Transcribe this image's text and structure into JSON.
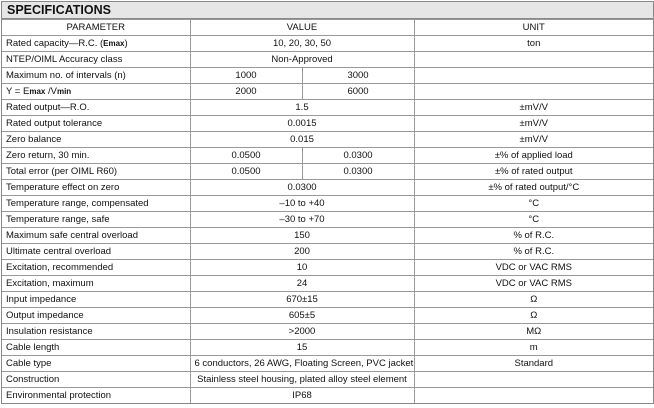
{
  "title": "SPECIFICATIONS",
  "headers": {
    "parameter": "PARAMETER",
    "value": "VALUE",
    "unit": "UNIT"
  },
  "rows": [
    {
      "parameter": "Rated capacity—R.C. (",
      "param_sub": "Emax",
      "param_end": ")",
      "value": "10, 20, 30, 50",
      "unit": "ton"
    },
    {
      "parameter": "NTEP/OIML Accuracy class",
      "value": "Non-Approved",
      "unit": ""
    },
    {
      "parameter": "Maximum no. of intervals (n)",
      "value1": "1000",
      "value2": "3000",
      "unit": ""
    },
    {
      "parameter": "Y = E",
      "param_sub": "max",
      "param_mid": " /V",
      "param_sub2": "min",
      "value1": "2000",
      "value2": "6000",
      "unit": ""
    },
    {
      "parameter": "Rated output—R.O.",
      "value": "1.5",
      "unit": "±mV/V"
    },
    {
      "parameter": "Rated output tolerance",
      "value": "0.0015",
      "unit": "±mV/V"
    },
    {
      "parameter": "Zero balance",
      "value": "0.015",
      "unit": "±mV/V"
    },
    {
      "parameter": "Zero return, 30 min.",
      "value1": "0.0500",
      "value2": "0.0300",
      "unit": "±% of applied load"
    },
    {
      "parameter": "Total error (per OIML R60)",
      "value1": "0.0500",
      "value2": "0.0300",
      "unit": "±% of rated output"
    },
    {
      "parameter": "Temperature effect on zero",
      "value": "0.0300",
      "unit": "±% of rated output/°C"
    },
    {
      "parameter": "Temperature range, compensated",
      "value": "–10 to +40",
      "unit": "°C"
    },
    {
      "parameter": "Temperature range, safe",
      "value": "–30 to +70",
      "unit": "°C"
    },
    {
      "parameter": "Maximum safe central overload",
      "value": "150",
      "unit": "% of R.C."
    },
    {
      "parameter": "Ultimate central overload",
      "value": "200",
      "unit": "% of R.C."
    },
    {
      "parameter": "Excitation, recommended",
      "value": "10",
      "unit": "VDC or VAC RMS"
    },
    {
      "parameter": "Excitation, maximum",
      "value": "24",
      "unit": "VDC or VAC RMS"
    },
    {
      "parameter": "Input impedance",
      "value": "670±15",
      "unit": "Ω"
    },
    {
      "parameter": "Output impedance",
      "value": "605±5",
      "unit": "Ω"
    },
    {
      "parameter": "Insulation resistance",
      "value": ">2000",
      "unit": "MΩ"
    },
    {
      "parameter": "Cable length",
      "value": "15",
      "unit": "m"
    },
    {
      "parameter": "Cable type",
      "value": "6 conductors, 26 AWG, Floating Screen, PVC jacket",
      "unit": "Standard"
    },
    {
      "parameter": "Construction",
      "value": "Stainless steel housing, plated alloy steel element",
      "unit": ""
    },
    {
      "parameter": "Environmental protection",
      "value": "IP68",
      "unit": ""
    }
  ]
}
